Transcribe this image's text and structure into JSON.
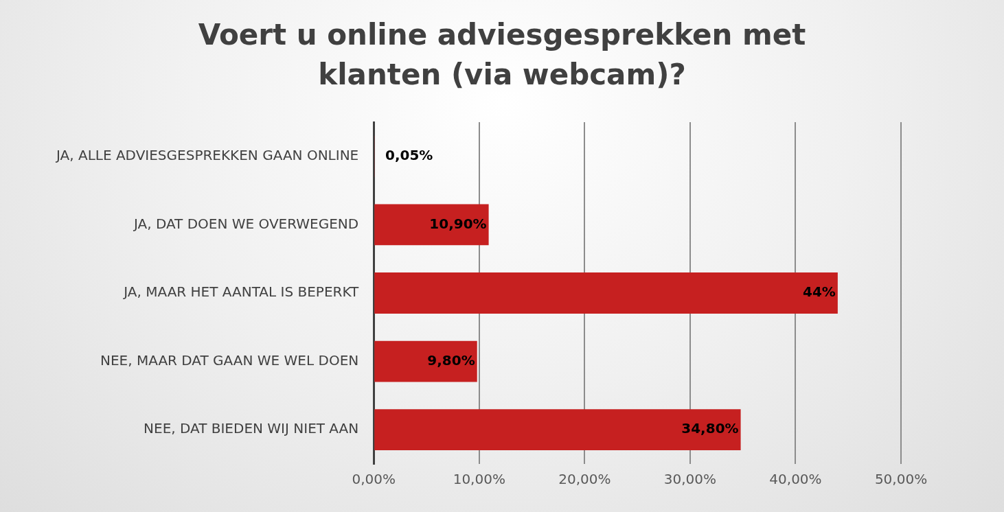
{
  "chart_data": {
    "type": "bar",
    "orientation": "horizontal",
    "title": "Voert u online adviesgesprekken met klanten (via webcam)?",
    "categories": [
      "JA, ALLE ADVIESGESPREKKEN GAAN ONLINE",
      "JA, DAT DOEN WE OVERWEGEND",
      "JA, MAAR HET AANTAL IS BEPERKT",
      "NEE, MAAR DAT GAAN WE WEL DOEN",
      "NEE, DAT BIEDEN WIJ NIET AAN"
    ],
    "values": [
      0.05,
      10.9,
      44,
      9.8,
      34.8
    ],
    "value_labels": [
      "0,05%",
      "10,90%",
      "44%",
      "9,80%",
      "34,80%"
    ],
    "color": "#c62020",
    "xlim": [
      0,
      50
    ],
    "xticks": [
      {
        "value": 0,
        "label": "0,00%"
      },
      {
        "value": 10,
        "label": "10,00%"
      },
      {
        "value": 20,
        "label": "20,00%"
      },
      {
        "value": 30,
        "label": "30,00%"
      },
      {
        "value": 40,
        "label": "40,00%"
      },
      {
        "value": 50,
        "label": "50,00%"
      }
    ],
    "grid": "x"
  }
}
